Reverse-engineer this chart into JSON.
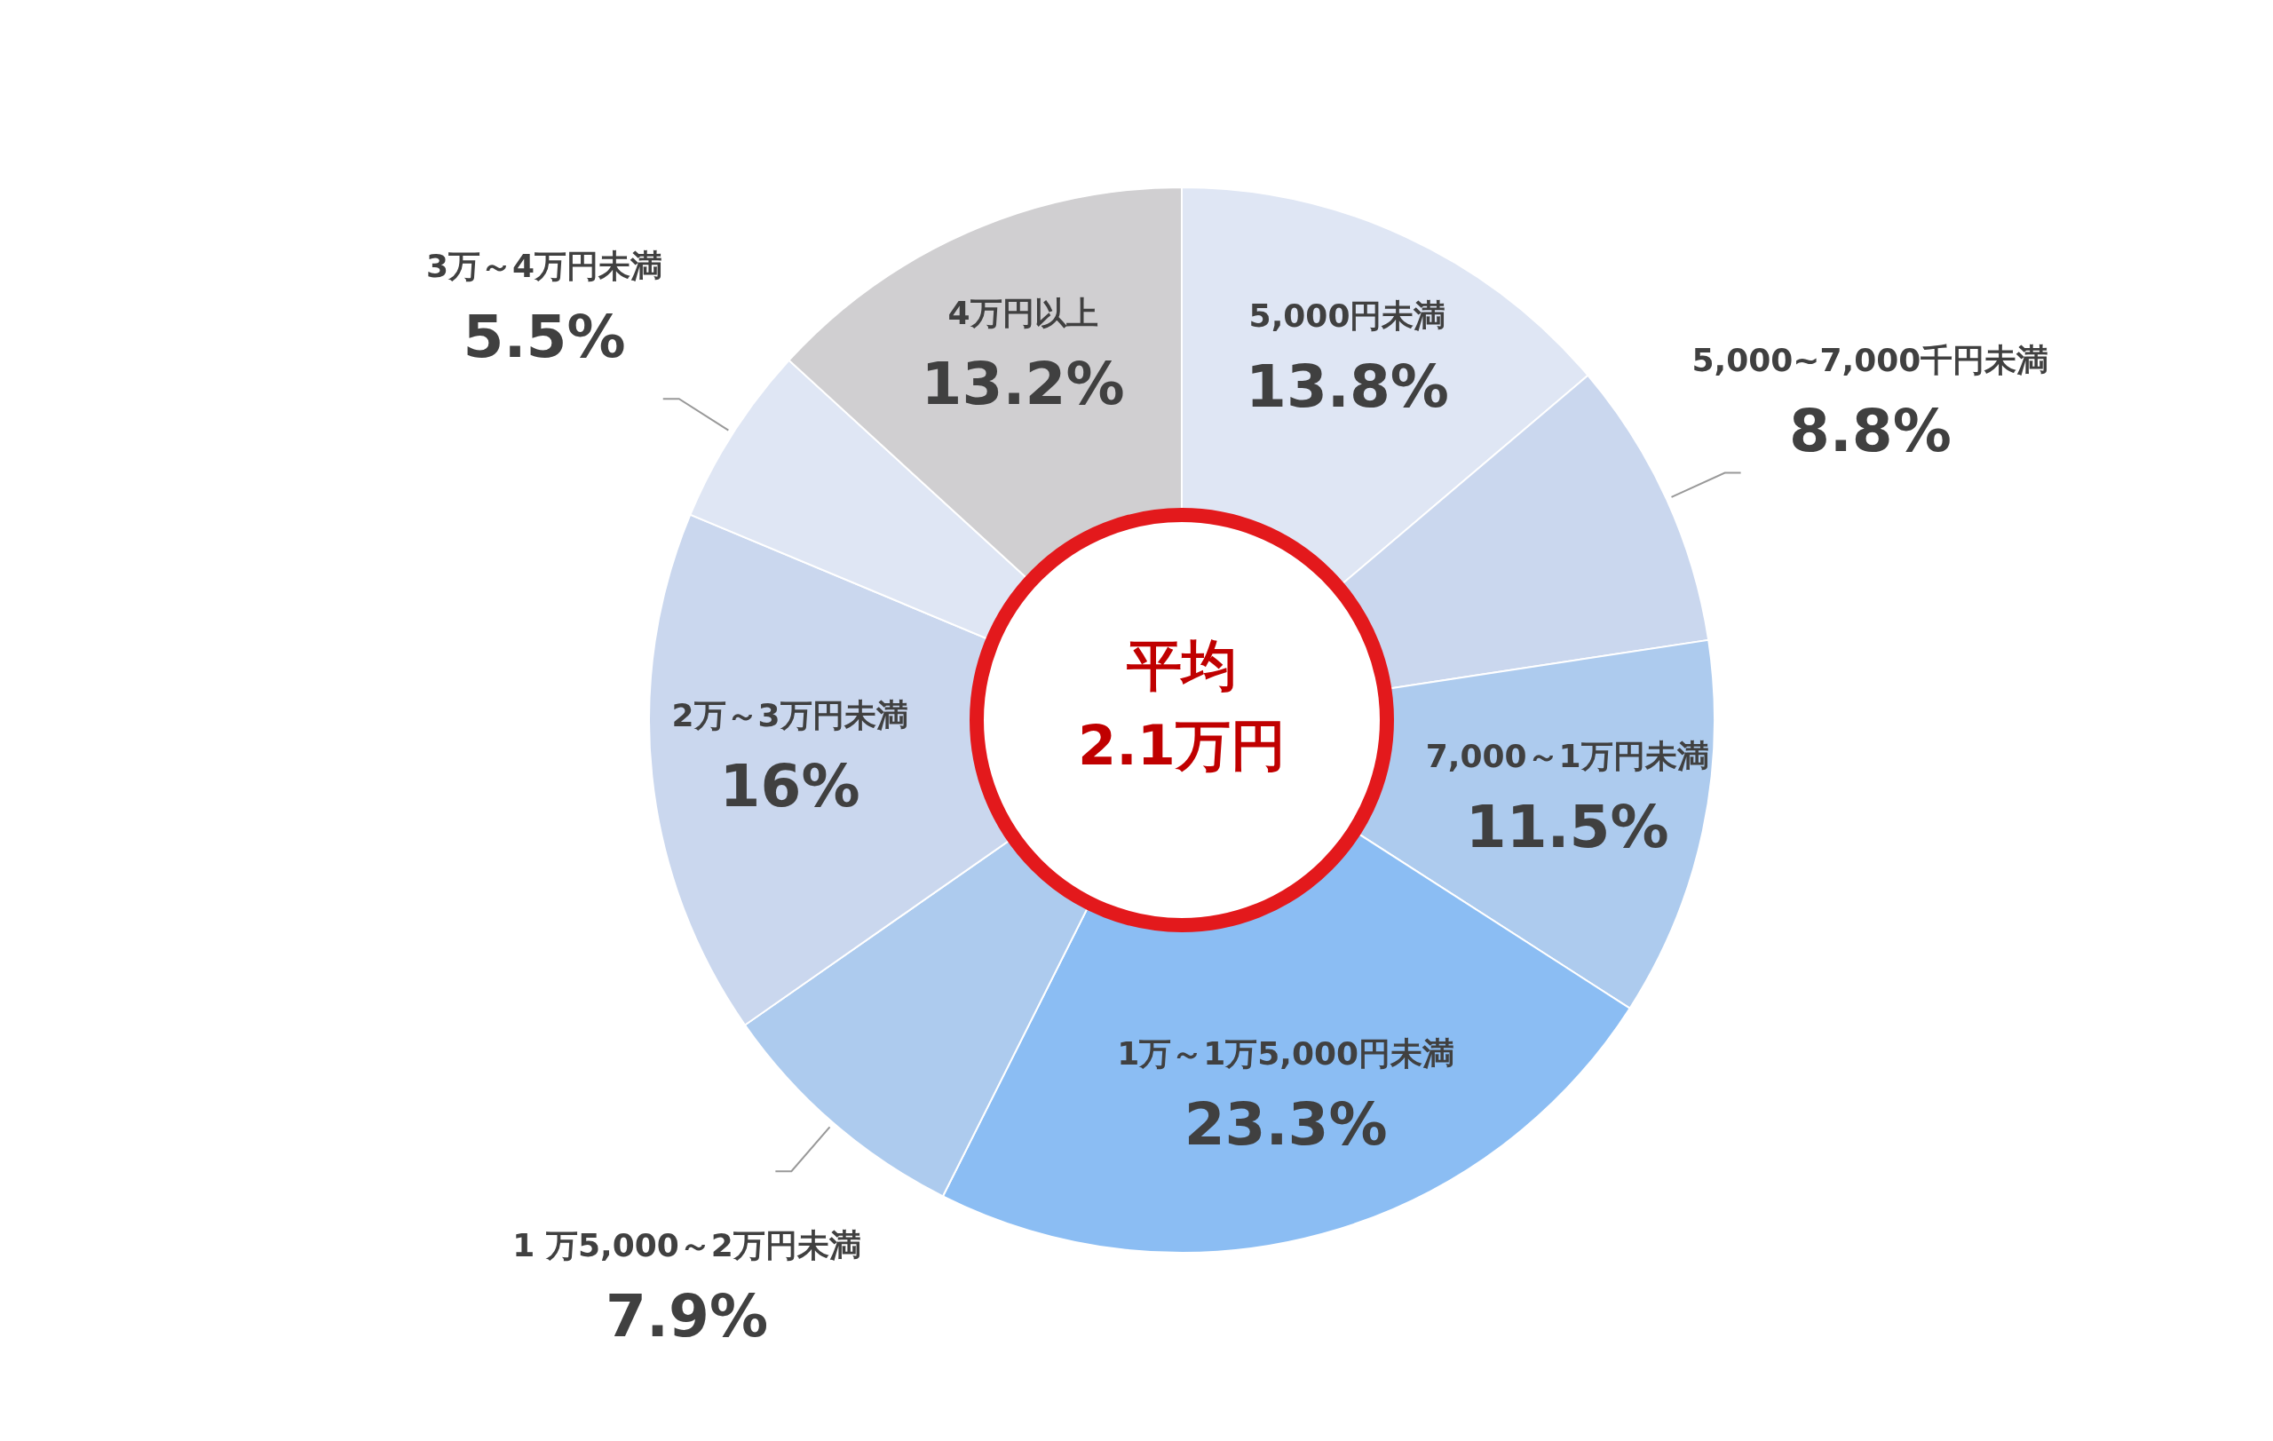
{
  "chart_data": {
    "type": "donut",
    "categories": [
      "5,000円未満",
      "5,000~7,000千円未満",
      "7,000～1万円未満",
      "1万～1万5,000円未満",
      "1 万5,000～2万円未満",
      "2万～3万円未満",
      "3万～4万円未満",
      "4万円以上"
    ],
    "values": [
      13.8,
      8.8,
      11.5,
      23.3,
      7.9,
      16,
      5.5,
      13.2
    ],
    "value_labels": [
      "13.8%",
      "8.8%",
      "11.5%",
      "23.3%",
      "7.9%",
      "16%",
      "5.5%",
      "13.2%"
    ],
    "colors": [
      "#dfe6f4",
      "#cad7ee",
      "#adcbee",
      "#8bbdf3",
      "#adcbee",
      "#cad7ee",
      "#dfe6f4",
      "#d0cfd1"
    ],
    "annotations": [
      "平均",
      "2.1万円"
    ]
  }
}
